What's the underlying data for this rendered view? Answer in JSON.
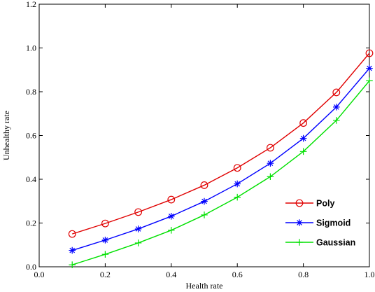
{
  "chart_data": {
    "type": "line",
    "title": "",
    "xlabel": "Health rate",
    "ylabel": "Unhealthy rate",
    "xlim": [
      0.0,
      1.0
    ],
    "ylim": [
      0.0,
      1.2
    ],
    "xticks": [
      "0.0",
      "0.2",
      "0.4",
      "0.6",
      "0.8",
      "1.0"
    ],
    "yticks": [
      "0.0",
      "0.2",
      "0.4",
      "0.6",
      "0.8",
      "1.0",
      "1.2"
    ],
    "grid": false,
    "legend_position": "bottom-right",
    "x": [
      0.1,
      0.2,
      0.3,
      0.4,
      0.5,
      0.6,
      0.7,
      0.8,
      0.9,
      1.0
    ],
    "series": [
      {
        "name": "Poly",
        "color": "#e00000",
        "marker": "circle",
        "values": [
          0.15,
          0.198,
          0.25,
          0.307,
          0.373,
          0.452,
          0.544,
          0.657,
          0.797,
          0.976
        ]
      },
      {
        "name": "Sigmoid",
        "color": "#0000ff",
        "marker": "asterisk",
        "values": [
          0.075,
          0.122,
          0.173,
          0.231,
          0.299,
          0.379,
          0.473,
          0.587,
          0.73,
          0.907
        ]
      },
      {
        "name": "Gaussian",
        "color": "#00e000",
        "marker": "plus",
        "values": [
          0.009,
          0.057,
          0.109,
          0.167,
          0.237,
          0.318,
          0.412,
          0.527,
          0.669,
          0.85
        ]
      }
    ]
  }
}
